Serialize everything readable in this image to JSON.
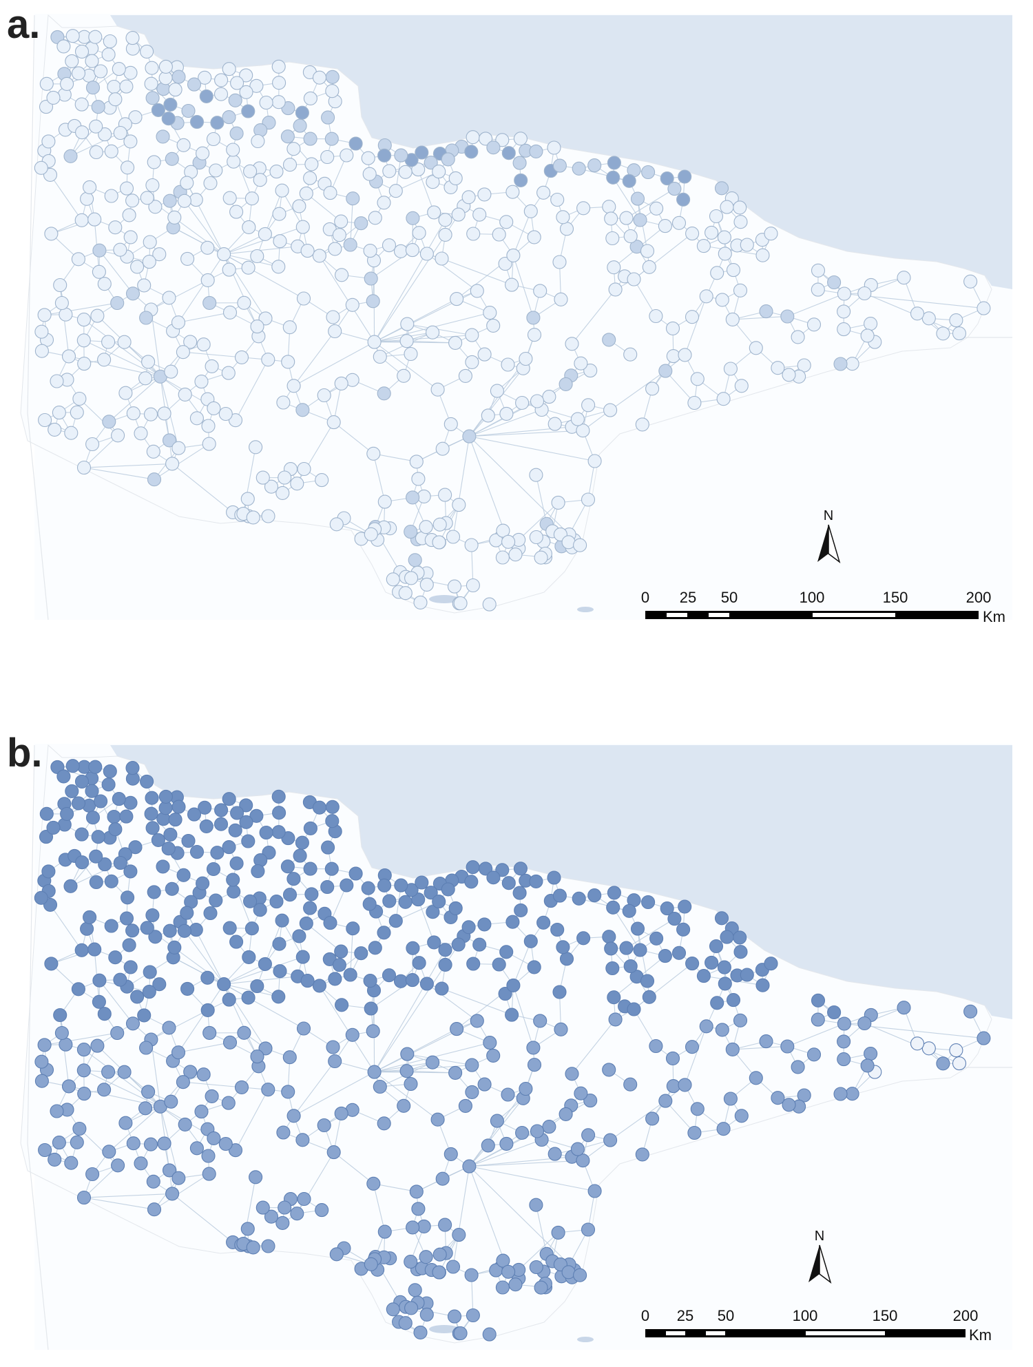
{
  "panels": [
    {
      "label": "a.",
      "north_label": "N",
      "scale": {
        "ticks": [
          "0",
          "25",
          "50",
          "100",
          "150",
          "200"
        ],
        "unit": "Km"
      },
      "node_fill": "#e9f1fa",
      "node_stroke": "#9fb4cd",
      "highlight_fill": "#8ea9cf",
      "highlight_fill_mid": "#c5d5ea"
    },
    {
      "label": "b.",
      "north_label": "N",
      "scale": {
        "ticks": [
          "0",
          "25",
          "50",
          "100",
          "150",
          "200"
        ],
        "unit": "Km"
      },
      "node_fill": "#6e8fc1",
      "node_fill_light": "#8aa5cf",
      "node_stroke": "#5d7fb3"
    }
  ],
  "colors": {
    "sea": "#dce6f2",
    "land": "#fbfdff",
    "edge": "#b9cadd",
    "boundary": "#e3e7ec"
  }
}
